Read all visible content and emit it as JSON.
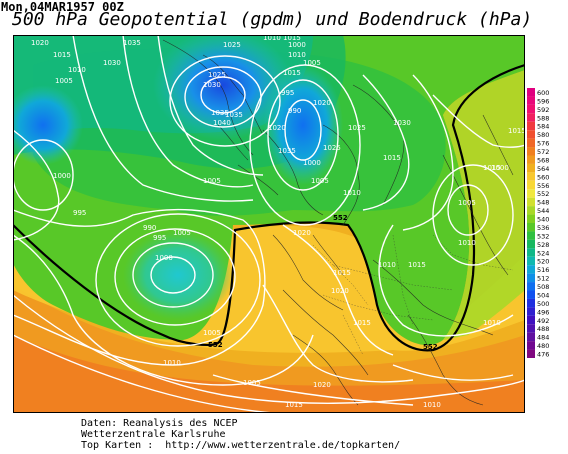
{
  "header": {
    "date": "Mon,04MAR1957 00Z",
    "title": "500 hPa Geopotential (gpdm) und Bodendruck (hPa)"
  },
  "map": {
    "pressure_labels": [
      "1020",
      "1015",
      "1010",
      "1005",
      "1030",
      "1035",
      "1025",
      "1025",
      "1030",
      "1035",
      "1035",
      "1040",
      "1010",
      "1015",
      "995",
      "990",
      "1000",
      "1005",
      "1010",
      "1015",
      "1020",
      "1020",
      "1035",
      "1025",
      "1030",
      "1025",
      "1015",
      "1005",
      "1010",
      "1000",
      "1005",
      "1000",
      "995",
      "990",
      "995",
      "1000",
      "1005",
      "1015",
      "1020",
      "1015",
      "1005",
      "1010",
      "1015",
      "1020",
      "1020",
      "1010",
      "1015",
      "1010",
      "1010",
      "1015",
      "1005",
      "1000",
      "1010",
      "1005",
      "1015"
    ],
    "contour_labels": [
      "552",
      "552",
      "552"
    ]
  },
  "legend": {
    "values": [
      "600",
      "596",
      "592",
      "588",
      "584",
      "580",
      "576",
      "572",
      "568",
      "564",
      "560",
      "556",
      "552",
      "548",
      "544",
      "540",
      "536",
      "532",
      "528",
      "524",
      "520",
      "516",
      "512",
      "508",
      "504",
      "500",
      "496",
      "492",
      "488",
      "484",
      "480",
      "476"
    ],
    "colors": [
      "#e0007f",
      "#e8087a",
      "#f01070",
      "#f02060",
      "#f03a40",
      "#f05030",
      "#f06828",
      "#f08020",
      "#f09a20",
      "#f0b020",
      "#f8c830",
      "#f8d838",
      "#f0e840",
      "#d0e030",
      "#a8d828",
      "#80d020",
      "#58c828",
      "#30c040",
      "#18b860",
      "#10b888",
      "#10b8b0",
      "#10a8d8",
      "#1090e8",
      "#1070f0",
      "#1050f0",
      "#2030e0",
      "#3020d0",
      "#4010c0",
      "#5010b0",
      "#6010a0",
      "#700890",
      "#800880"
    ]
  },
  "footer": {
    "line1": "Daten: Reanalysis des NCEP",
    "line2": "Wetterzentrale Karlsruhe",
    "line3": "Top Karten :  http://www.wetterzentrale.de/topkarten/"
  }
}
